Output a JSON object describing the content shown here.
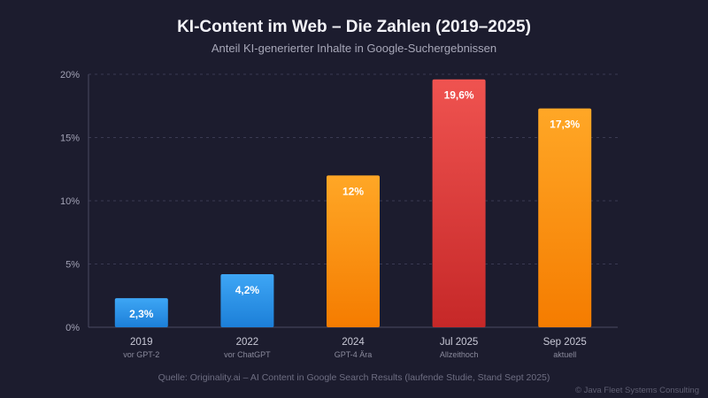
{
  "chart_data": {
    "type": "bar",
    "title": "KI-Content im Web – Die Zahlen (2019–2025)",
    "subtitle": "Anteil KI-generierter Inhalte in Google-Suchergebnissen",
    "categories": [
      "2019",
      "2022",
      "2024",
      "Jul 2025",
      "Sep 2025"
    ],
    "sublabels": [
      "vor GPT-2",
      "vor ChatGPT",
      "GPT-4 Ära",
      "Allzeithoch",
      "aktuell"
    ],
    "values": [
      2.3,
      4.2,
      12,
      19.6,
      17.3
    ],
    "value_labels": [
      "2,3%",
      "4,2%",
      "12%",
      "19,6%",
      "17,3%"
    ],
    "bar_styles": [
      "blue",
      "blue",
      "orange",
      "red",
      "orange"
    ],
    "yticks": [
      0,
      5,
      10,
      15,
      20
    ],
    "ytick_labels": [
      "0%",
      "5%",
      "10%",
      "15%",
      "20%"
    ],
    "ylim": [
      0,
      20
    ],
    "xlabel": "",
    "ylabel": "",
    "grid": true
  },
  "source": "Quelle: Originality.ai – AI Content in Google Search Results (laufende Studie, Stand Sept 2025)",
  "copyright": "© Java Fleet Systems Consulting",
  "colors": {
    "blue_top": "#3ea6f5",
    "blue_bottom": "#1c7fd8",
    "orange_top": "#ffa726",
    "orange_bottom": "#f57c00",
    "red_top": "#ef5350",
    "red_bottom": "#c62828",
    "highlight_sub": "#ef5350"
  }
}
